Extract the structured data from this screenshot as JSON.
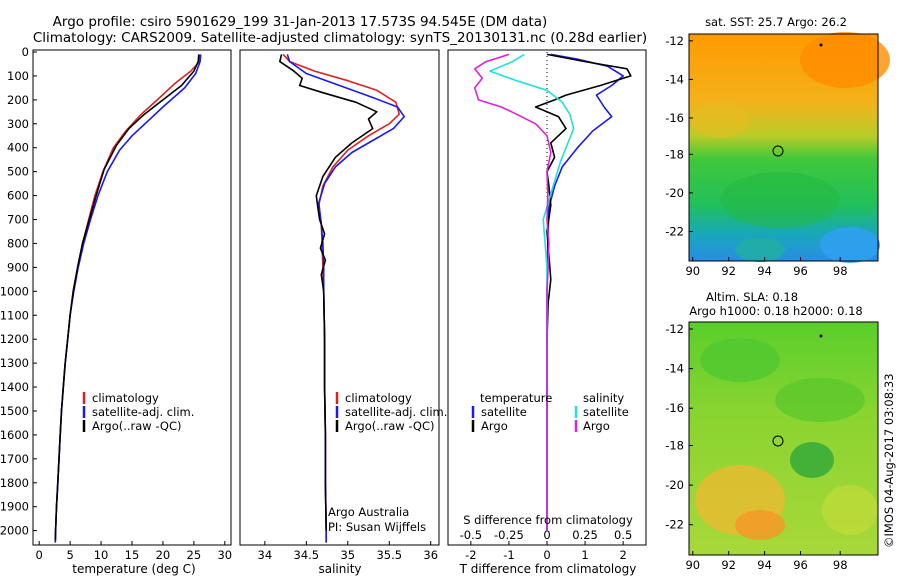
{
  "title": {
    "line1": "Argo profile: csiro 5901629_199 31-Jan-2013 17.573S 94.545E (DM data)",
    "line2": "Climatology: CARS2009. Satellite-adjusted climatology: synTS_20130131.nc (0.28d earlier)"
  },
  "colors": {
    "climatology": "#e02020",
    "satellite": "#1a1aee",
    "argo": "#000000",
    "argo_s": "#dd22dd",
    "sat_s": "#22e0e0"
  },
  "chart_data": [
    {
      "type": "line",
      "name": "temperature",
      "xlabel": "temperature (deg C)",
      "xlim": [
        -1,
        31
      ],
      "xticks": [
        0,
        5,
        10,
        15,
        20,
        25,
        30
      ],
      "ylim": [
        2060,
        0
      ],
      "yticks": [
        0,
        100,
        200,
        300,
        400,
        500,
        600,
        700,
        800,
        900,
        1000,
        1100,
        1200,
        1300,
        1400,
        1500,
        1600,
        1700,
        1800,
        1900,
        2000
      ],
      "legend": [
        "climatology",
        "satellite-adj. clim.",
        "Argo(..raw -QC)"
      ],
      "series": [
        {
          "name": "climatology",
          "color": "#e02020",
          "points": [
            [
              26.0,
              10
            ],
            [
              25.9,
              40
            ],
            [
              24.5,
              80
            ],
            [
              22.0,
              130
            ],
            [
              19.5,
              190
            ],
            [
              16.5,
              260
            ],
            [
              14.0,
              330
            ],
            [
              12.0,
              400
            ],
            [
              10.3,
              500
            ],
            [
              9.0,
              600
            ],
            [
              8.0,
              700
            ],
            [
              7.0,
              800
            ],
            [
              6.2,
              900
            ],
            [
              5.5,
              1000
            ],
            [
              5.0,
              1100
            ],
            [
              4.6,
              1200
            ],
            [
              4.2,
              1300
            ],
            [
              3.9,
              1400
            ],
            [
              3.6,
              1500
            ],
            [
              3.4,
              1600
            ],
            [
              3.2,
              1700
            ],
            [
              3.0,
              1800
            ],
            [
              2.8,
              1900
            ],
            [
              2.65,
              2000
            ],
            [
              2.6,
              2050
            ]
          ]
        },
        {
          "name": "satellite-adj. clim.",
          "color": "#1a1aee",
          "points": [
            [
              26.1,
              10
            ],
            [
              26.0,
              40
            ],
            [
              25.3,
              90
            ],
            [
              23.5,
              150
            ],
            [
              20.0,
              230
            ],
            [
              17.5,
              290
            ],
            [
              15.0,
              350
            ],
            [
              13.0,
              410
            ],
            [
              11.0,
              500
            ],
            [
              9.5,
              600
            ],
            [
              8.3,
              700
            ],
            [
              7.2,
              800
            ],
            [
              6.3,
              900
            ],
            [
              5.6,
              1000
            ],
            [
              5.0,
              1100
            ],
            [
              4.6,
              1200
            ],
            [
              4.2,
              1300
            ],
            [
              3.9,
              1400
            ],
            [
              3.6,
              1500
            ],
            [
              3.4,
              1600
            ],
            [
              3.2,
              1700
            ],
            [
              3.0,
              1800
            ],
            [
              2.8,
              1900
            ],
            [
              2.65,
              2000
            ],
            [
              2.6,
              2050
            ]
          ]
        },
        {
          "name": "Argo(..raw -QC)",
          "color": "#000000",
          "points": [
            [
              25.8,
              10
            ],
            [
              25.7,
              40
            ],
            [
              25.0,
              80
            ],
            [
              23.0,
              140
            ],
            [
              20.0,
              200
            ],
            [
              17.0,
              260
            ],
            [
              14.5,
              320
            ],
            [
              12.5,
              390
            ],
            [
              10.5,
              490
            ],
            [
              9.2,
              600
            ],
            [
              8.1,
              700
            ],
            [
              7.0,
              800
            ],
            [
              6.2,
              900
            ],
            [
              5.5,
              1000
            ],
            [
              5.0,
              1100
            ],
            [
              4.6,
              1200
            ],
            [
              4.2,
              1300
            ],
            [
              3.9,
              1400
            ],
            [
              3.6,
              1500
            ],
            [
              3.4,
              1600
            ],
            [
              3.2,
              1700
            ],
            [
              3.0,
              1800
            ],
            [
              2.8,
              1900
            ],
            [
              2.65,
              2000
            ],
            [
              2.6,
              2040
            ]
          ]
        }
      ]
    },
    {
      "type": "line",
      "name": "salinity",
      "xlabel": "salinity",
      "xlim": [
        33.7,
        36.1
      ],
      "xticks": [
        34,
        34.5,
        35,
        35.5,
        36
      ],
      "ylim": [
        2060,
        0
      ],
      "legend": [
        "climatology",
        "satellite-adj. clim.",
        "Argo(..raw -QC)"
      ],
      "annotation": [
        "Argo Australia",
        "PI: Susan Wijffels"
      ],
      "series": [
        {
          "name": "climatology",
          "color": "#e02020",
          "points": [
            [
              34.22,
              10
            ],
            [
              34.3,
              40
            ],
            [
              34.6,
              80
            ],
            [
              35.0,
              120
            ],
            [
              35.35,
              160
            ],
            [
              35.58,
              210
            ],
            [
              35.62,
              260
            ],
            [
              35.5,
              300
            ],
            [
              35.25,
              350
            ],
            [
              35.0,
              410
            ],
            [
              34.82,
              480
            ],
            [
              34.7,
              560
            ],
            [
              34.65,
              640
            ],
            [
              34.68,
              720
            ],
            [
              34.69,
              800
            ],
            [
              34.7,
              900
            ],
            [
              34.71,
              1000
            ],
            [
              34.72,
              1200
            ],
            [
              34.72,
              1400
            ],
            [
              34.73,
              1600
            ],
            [
              34.73,
              1800
            ],
            [
              34.74,
              2000
            ],
            [
              34.74,
              2050
            ]
          ]
        },
        {
          "name": "satellite-adj. clim.",
          "color": "#1a1aee",
          "points": [
            [
              34.27,
              10
            ],
            [
              34.3,
              40
            ],
            [
              34.5,
              90
            ],
            [
              34.9,
              140
            ],
            [
              35.3,
              190
            ],
            [
              35.6,
              230
            ],
            [
              35.68,
              270
            ],
            [
              35.55,
              320
            ],
            [
              35.3,
              370
            ],
            [
              35.05,
              420
            ],
            [
              34.85,
              480
            ],
            [
              34.72,
              550
            ],
            [
              34.65,
              630
            ],
            [
              34.68,
              720
            ],
            [
              34.7,
              800
            ],
            [
              34.71,
              900
            ],
            [
              34.71,
              1000
            ],
            [
              34.72,
              1200
            ],
            [
              34.72,
              1400
            ],
            [
              34.73,
              1600
            ],
            [
              34.73,
              1800
            ],
            [
              34.74,
              2000
            ],
            [
              34.74,
              2050
            ]
          ]
        },
        {
          "name": "Argo(..raw -QC)",
          "color": "#000000",
          "points": [
            [
              34.2,
              10
            ],
            [
              34.18,
              40
            ],
            [
              34.35,
              80
            ],
            [
              34.45,
              110
            ],
            [
              34.42,
              140
            ],
            [
              34.7,
              170
            ],
            [
              35.1,
              210
            ],
            [
              35.35,
              250
            ],
            [
              35.25,
              280
            ],
            [
              35.3,
              320
            ],
            [
              35.05,
              380
            ],
            [
              34.85,
              440
            ],
            [
              34.7,
              520
            ],
            [
              34.62,
              600
            ],
            [
              34.64,
              650
            ],
            [
              34.66,
              700
            ],
            [
              34.72,
              760
            ],
            [
              34.67,
              820
            ],
            [
              34.73,
              870
            ],
            [
              34.68,
              930
            ],
            [
              34.71,
              1000
            ],
            [
              34.72,
              1200
            ],
            [
              34.72,
              1400
            ],
            [
              34.73,
              1600
            ],
            [
              34.73,
              1800
            ],
            [
              34.74,
              2000
            ]
          ]
        }
      ]
    },
    {
      "type": "line",
      "name": "difference",
      "xlabel_top": "S difference from climatology",
      "xlabel_bottom": "T difference from climatology",
      "xlim": [
        -2.6,
        2.6
      ],
      "xticks_T": [
        -2,
        -1,
        0,
        1,
        2
      ],
      "xticks_S": [
        "-0.5",
        "-0.25",
        "0",
        "0.25",
        "0.5"
      ],
      "ylim": [
        2060,
        0
      ],
      "legend_t": [
        "temperature",
        "satellite",
        "Argo"
      ],
      "legend_s": [
        "salinity",
        "satellite",
        "Argo"
      ],
      "series": [
        {
          "name": "T satellite",
          "color": "#1a1aee",
          "points": [
            [
              0.1,
              10
            ],
            [
              0.8,
              30
            ],
            [
              1.6,
              60
            ],
            [
              2.0,
              100
            ],
            [
              1.7,
              140
            ],
            [
              1.3,
              180
            ],
            [
              1.5,
              230
            ],
            [
              1.7,
              270
            ],
            [
              1.2,
              330
            ],
            [
              0.8,
              400
            ],
            [
              0.4,
              480
            ],
            [
              0.2,
              560
            ],
            [
              0.05,
              650
            ],
            [
              0.02,
              800
            ],
            [
              0.0,
              1000
            ],
            [
              0.0,
              1500
            ],
            [
              0.0,
              2000
            ]
          ]
        },
        {
          "name": "T Argo",
          "color": "#000000",
          "points": [
            [
              0.0,
              10
            ],
            [
              1.0,
              40
            ],
            [
              2.1,
              70
            ],
            [
              2.2,
              100
            ],
            [
              1.4,
              140
            ],
            [
              0.5,
              180
            ],
            [
              0.2,
              200
            ],
            [
              -0.3,
              230
            ],
            [
              0.3,
              270
            ],
            [
              0.5,
              320
            ],
            [
              0.1,
              380
            ],
            [
              0.2,
              440
            ],
            [
              0.0,
              500
            ],
            [
              0.05,
              560
            ],
            [
              0.1,
              640
            ],
            [
              0.0,
              750
            ],
            [
              0.05,
              850
            ],
            [
              0.1,
              950
            ],
            [
              0.03,
              1050
            ],
            [
              0.0,
              1200
            ],
            [
              0.0,
              1500
            ],
            [
              0.0,
              2000
            ]
          ]
        },
        {
          "name": "S satellite",
          "color": "#22e0e0",
          "points": [
            [
              -0.6,
              10
            ],
            [
              -0.9,
              40
            ],
            [
              -1.5,
              80
            ],
            [
              -0.8,
              120
            ],
            [
              0.0,
              160
            ],
            [
              0.4,
              210
            ],
            [
              0.6,
              260
            ],
            [
              0.7,
              320
            ],
            [
              0.55,
              380
            ],
            [
              0.35,
              460
            ],
            [
              0.2,
              540
            ],
            [
              0.05,
              620
            ],
            [
              -0.1,
              700
            ],
            [
              -0.05,
              800
            ],
            [
              0.0,
              900
            ],
            [
              0.0,
              1200
            ],
            [
              0.0,
              1600
            ],
            [
              0.0,
              2000
            ]
          ]
        },
        {
          "name": "S Argo",
          "color": "#dd22dd",
          "points": [
            [
              -1.0,
              10
            ],
            [
              -1.6,
              40
            ],
            [
              -1.9,
              70
            ],
            [
              -1.7,
              110
            ],
            [
              -1.9,
              150
            ],
            [
              -1.8,
              200
            ],
            [
              -1.2,
              230
            ],
            [
              -0.8,
              260
            ],
            [
              -0.3,
              300
            ],
            [
              0.0,
              350
            ],
            [
              0.1,
              420
            ],
            [
              0.0,
              500
            ],
            [
              0.02,
              600
            ],
            [
              0.0,
              700
            ],
            [
              0.05,
              800
            ],
            [
              0.03,
              900
            ],
            [
              0.0,
              1000
            ],
            [
              0.0,
              1500
            ],
            [
              0.0,
              2000
            ]
          ]
        }
      ]
    }
  ],
  "maps": {
    "sst": {
      "title": "sat. SST: 25.7 Argo: 26.2"
    },
    "sla": {
      "title1": "Altim. SLA: 0.18",
      "title2": "Argo h1000: 0.18 h2000: 0.18"
    },
    "yticks": [
      "-12",
      "-14",
      "-16",
      "-18",
      "-20",
      "-22"
    ],
    "xticks": [
      "90",
      "92",
      "94",
      "96",
      "98"
    ]
  },
  "credit": "©IMOS 04-Aug-2017 03:08:33"
}
